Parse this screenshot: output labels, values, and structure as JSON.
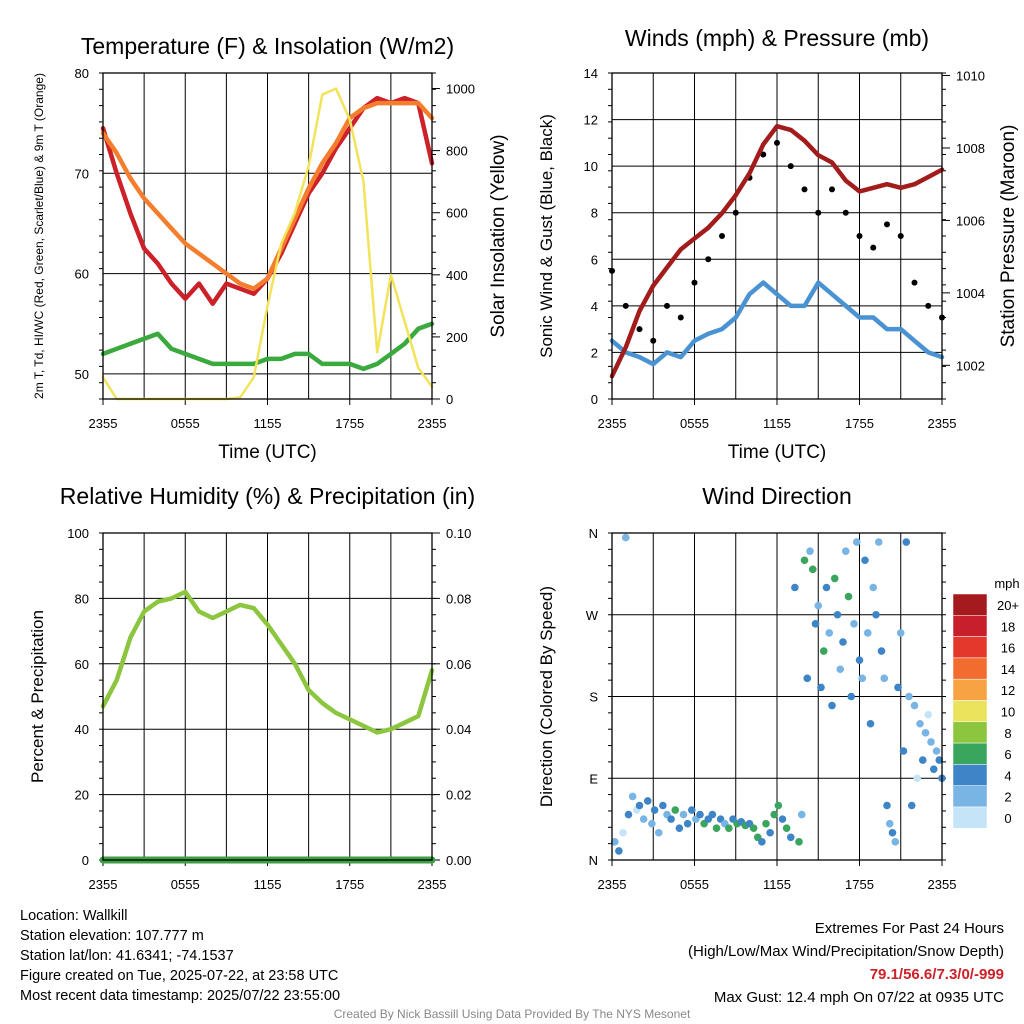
{
  "colors": {
    "temp_red": "#cc2128",
    "temp_orange": "#f47e2e",
    "green": "#3aa93e",
    "yellow": "#f2e35a",
    "wind_blue": "#4a93d3",
    "gust_black": "#000000",
    "pressure_maroon": "#a31c1c",
    "rh_green": "#8cc63e",
    "precip_green": "#3e9e45",
    "extremes_red": "#cc2128"
  },
  "chart_data": [
    {
      "type": "line",
      "title": "Temperature (F) & Insolation (W/m2)",
      "xlabel": "Time (UTC)",
      "ylabel": "2m T, Td, HI/WC (Red, Green, Scarlet/Blue) & 9m T (Orange)",
      "ylabel2": "Solar Insolation (Yellow)",
      "x_ticks": [
        "2355",
        "0555",
        "1155",
        "1755",
        "2355"
      ],
      "ylim": [
        47.5,
        80
      ],
      "y_ticks": [
        50,
        60,
        70,
        80
      ],
      "y2lim": [
        0,
        1050
      ],
      "y2_ticks": [
        0,
        200,
        400,
        600,
        800,
        1000
      ],
      "x_hours": [
        0,
        1,
        2,
        3,
        4,
        5,
        6,
        7,
        8,
        9,
        10,
        11,
        12,
        13,
        14,
        15,
        16,
        17,
        18,
        19,
        20,
        21,
        22,
        23,
        24
      ],
      "series": [
        {
          "color": "temp_red",
          "axis": "left",
          "values": [
            74.5,
            70,
            66,
            62.5,
            61,
            59,
            57.5,
            59,
            57,
            59,
            58.5,
            58,
            59.5,
            62,
            65,
            68,
            70,
            72.5,
            74.5,
            76.5,
            77.5,
            77,
            77.5,
            77,
            71
          ]
        },
        {
          "color": "temp_orange",
          "axis": "left",
          "values": [
            74,
            72,
            69.5,
            67.5,
            66,
            64.5,
            63,
            62,
            61,
            60,
            59,
            58.5,
            59.5,
            62.5,
            65.5,
            68.5,
            71,
            73,
            75.5,
            76.5,
            77,
            77,
            77,
            77,
            75.5
          ]
        },
        {
          "color": "green",
          "axis": "left",
          "values": [
            52,
            52.5,
            53,
            53.5,
            54,
            52.5,
            52,
            51.5,
            51,
            51,
            51,
            51,
            51.5,
            51.5,
            52,
            52,
            51,
            51,
            51,
            50.5,
            51,
            52,
            53,
            54.5,
            55
          ]
        },
        {
          "color": "yellow",
          "axis": "right",
          "values": [
            70,
            0,
            0,
            0,
            0,
            0,
            0,
            0,
            0,
            0,
            5,
            70,
            300,
            500,
            600,
            750,
            980,
            1000,
            900,
            700,
            150,
            400,
            250,
            100,
            40
          ]
        }
      ]
    },
    {
      "type": "line",
      "title": "Winds (mph) & Pressure (mb)",
      "xlabel": "Time (UTC)",
      "ylabel": "Sonic Wind & Gust (Blue, Black)",
      "ylabel2": "Station Pressure (Maroon)",
      "x_ticks": [
        "2355",
        "0555",
        "1155",
        "1755",
        "2355"
      ],
      "ylim": [
        0,
        14
      ],
      "y_ticks": [
        0,
        2,
        4,
        6,
        8,
        10,
        12,
        14
      ],
      "y2lim": [
        1001.07,
        1010.07
      ],
      "y2_ticks": [
        1002,
        1004,
        1006,
        1008,
        1010
      ],
      "x_hours": [
        0,
        1,
        2,
        3,
        4,
        5,
        6,
        7,
        8,
        9,
        10,
        11,
        12,
        13,
        14,
        15,
        16,
        17,
        18,
        19,
        20,
        21,
        22,
        23,
        24
      ],
      "series": [
        {
          "color": "wind_blue",
          "axis": "left",
          "values": [
            2.5,
            2,
            1.8,
            1.5,
            2,
            1.8,
            2.5,
            2.8,
            3,
            3.5,
            4.5,
            5,
            4.5,
            4,
            4,
            5,
            4.5,
            4,
            3.5,
            3.5,
            3,
            3,
            2.5,
            2,
            1.8
          ]
        },
        {
          "color": "gust_black",
          "axis": "left",
          "style": "dots",
          "values": [
            5.5,
            4,
            3,
            2.5,
            4,
            3.5,
            5,
            6,
            7,
            8,
            9.5,
            10.5,
            11,
            10,
            9,
            8,
            9,
            8,
            7,
            6.5,
            7.5,
            7,
            5,
            4,
            3.5
          ]
        },
        {
          "color": "pressure_maroon",
          "axis": "right",
          "values": [
            1001.7,
            1002.5,
            1003.5,
            1004.2,
            1004.7,
            1005.2,
            1005.5,
            1005.8,
            1006.2,
            1006.7,
            1007.3,
            1008.1,
            1008.6,
            1008.5,
            1008.2,
            1007.8,
            1007.6,
            1007.1,
            1006.8,
            1006.9,
            1007.0,
            1006.9,
            1007.0,
            1007.2,
            1007.4
          ]
        }
      ]
    },
    {
      "type": "line",
      "title": "Relative Humidity (%) & Precipitation (in)",
      "xlabel": "",
      "ylabel": "Percent & Precipitation",
      "x_ticks": [
        "2355",
        "0555",
        "1155",
        "1755",
        "2355"
      ],
      "ylim": [
        0,
        100
      ],
      "y_ticks": [
        0,
        20,
        40,
        60,
        80,
        100
      ],
      "y2lim": [
        0,
        0.1
      ],
      "y2_ticks": [
        "0.00",
        "0.02",
        "0.04",
        "0.06",
        "0.08",
        "0.10"
      ],
      "x_hours": [
        0,
        1,
        2,
        3,
        4,
        5,
        6,
        7,
        8,
        9,
        10,
        11,
        12,
        13,
        14,
        15,
        16,
        17,
        18,
        19,
        20,
        21,
        22,
        23,
        24
      ],
      "series": [
        {
          "color": "rh_green",
          "axis": "left",
          "values": [
            47,
            55,
            68,
            76,
            79,
            80,
            82,
            76,
            74,
            76,
            78,
            77,
            72,
            66,
            60,
            52,
            48,
            45,
            43,
            41,
            39,
            40,
            42,
            44,
            58
          ]
        },
        {
          "color": "precip_green",
          "axis": "right",
          "values": [
            0,
            0,
            0,
            0,
            0,
            0,
            0,
            0,
            0,
            0,
            0,
            0,
            0,
            0,
            0,
            0,
            0,
            0,
            0,
            0,
            0,
            0,
            0,
            0,
            0
          ]
        }
      ]
    },
    {
      "type": "scatter",
      "title": "Wind Direction",
      "xlabel": "",
      "ylabel": "Direction (Colored By Speed)",
      "x_ticks": [
        "2355",
        "0555",
        "1155",
        "1755",
        "2355"
      ],
      "y_tick_labels": [
        "N",
        "E",
        "S",
        "W",
        "N"
      ],
      "ylim": [
        0,
        360
      ],
      "legend_title": "mph",
      "legend_labels": [
        "20+",
        "18",
        "16",
        "14",
        "12",
        "10",
        "8",
        "6",
        "4",
        "2",
        "0"
      ],
      "legend_colors": [
        "#a51a1e",
        "#c8202a",
        "#e5382c",
        "#f26c2f",
        "#f8a343",
        "#ebe35c",
        "#8cc63e",
        "#3aa55c",
        "#3d85c6",
        "#78b4e4",
        "#c6e4f7"
      ],
      "points": [
        [
          0.2,
          20
        ],
        [
          0.5,
          10
        ],
        [
          0.8,
          30
        ],
        [
          1.0,
          355
        ],
        [
          1.2,
          50
        ],
        [
          1.5,
          70
        ],
        [
          1.8,
          55
        ],
        [
          2.0,
          60
        ],
        [
          2.3,
          45
        ],
        [
          2.6,
          65
        ],
        [
          2.9,
          40
        ],
        [
          3.1,
          55
        ],
        [
          3.4,
          30
        ],
        [
          3.7,
          60
        ],
        [
          4.0,
          50
        ],
        [
          4.3,
          45
        ],
        [
          4.6,
          55
        ],
        [
          4.9,
          35
        ],
        [
          5.2,
          50
        ],
        [
          5.5,
          40
        ],
        [
          5.8,
          55
        ],
        [
          6.1,
          45
        ],
        [
          6.4,
          50
        ],
        [
          6.7,
          40
        ],
        [
          7.0,
          45
        ],
        [
          7.3,
          50
        ],
        [
          7.6,
          35
        ],
        [
          7.9,
          45
        ],
        [
          8.2,
          40
        ],
        [
          8.5,
          35
        ],
        [
          8.8,
          45
        ],
        [
          9.1,
          40
        ],
        [
          9.4,
          42
        ],
        [
          9.7,
          38
        ],
        [
          10.0,
          40
        ],
        [
          10.3,
          35
        ],
        [
          10.6,
          25
        ],
        [
          10.9,
          20
        ],
        [
          11.2,
          40
        ],
        [
          11.5,
          30
        ],
        [
          11.8,
          50
        ],
        [
          12.1,
          60
        ],
        [
          12.4,
          45
        ],
        [
          12.7,
          35
        ],
        [
          13.0,
          25
        ],
        [
          13.3,
          300
        ],
        [
          13.6,
          20
        ],
        [
          13.8,
          50
        ],
        [
          14.0,
          330
        ],
        [
          14.2,
          200
        ],
        [
          14.4,
          340
        ],
        [
          14.6,
          320
        ],
        [
          14.8,
          260
        ],
        [
          15.0,
          280
        ],
        [
          15.2,
          190
        ],
        [
          15.4,
          230
        ],
        [
          15.6,
          300
        ],
        [
          15.8,
          250
        ],
        [
          16.0,
          170
        ],
        [
          16.2,
          310
        ],
        [
          16.4,
          270
        ],
        [
          16.6,
          210
        ],
        [
          16.8,
          240
        ],
        [
          17.0,
          340
        ],
        [
          17.2,
          290
        ],
        [
          17.4,
          180
        ],
        [
          17.6,
          260
        ],
        [
          17.8,
          350
        ],
        [
          18.0,
          220
        ],
        [
          18.2,
          200
        ],
        [
          18.4,
          330
        ],
        [
          18.6,
          250
        ],
        [
          18.8,
          150
        ],
        [
          19.0,
          300
        ],
        [
          19.2,
          270
        ],
        [
          19.4,
          350
        ],
        [
          19.6,
          230
        ],
        [
          19.8,
          200
        ],
        [
          20.0,
          60
        ],
        [
          20.2,
          40
        ],
        [
          20.4,
          30
        ],
        [
          20.6,
          20
        ],
        [
          20.8,
          190
        ],
        [
          21.0,
          250
        ],
        [
          21.2,
          120
        ],
        [
          21.4,
          350
        ],
        [
          21.6,
          180
        ],
        [
          21.8,
          60
        ],
        [
          22.0,
          170
        ],
        [
          22.2,
          90
        ],
        [
          22.4,
          150
        ],
        [
          22.6,
          110
        ],
        [
          22.8,
          140
        ],
        [
          23.0,
          160
        ],
        [
          23.2,
          130
        ],
        [
          23.4,
          100
        ],
        [
          23.6,
          120
        ],
        [
          23.8,
          110
        ],
        [
          24.0,
          90
        ]
      ],
      "point_colors": [
        "#78b4e4",
        "#3d85c6",
        "#c6e4f7",
        "#78b4e4",
        "#3d85c6",
        "#78b4e4",
        "#c6e4f7",
        "#3d85c6",
        "#78b4e4",
        "#3d85c6",
        "#78b4e4",
        "#3d85c6",
        "#78b4e4",
        "#3d85c6",
        "#78b4e4",
        "#3d85c6",
        "#3aa55c",
        "#3d85c6",
        "#78b4e4",
        "#3d85c6",
        "#3d85c6",
        "#78b4e4",
        "#3d85c6",
        "#3aa55c",
        "#3d85c6",
        "#3d85c6",
        "#3aa55c",
        "#3d85c6",
        "#78b4e4",
        "#3aa55c",
        "#3d85c6",
        "#3aa55c",
        "#3d85c6",
        "#3aa55c",
        "#3d85c6",
        "#3aa55c",
        "#3aa55c",
        "#3d85c6",
        "#3aa55c",
        "#3d85c6",
        "#3aa55c",
        "#3aa55c",
        "#3d85c6",
        "#3aa55c",
        "#3d85c6",
        "#3d85c6",
        "#3aa55c",
        "#78b4e4",
        "#3aa55c",
        "#3d85c6",
        "#78b4e4",
        "#3aa55c",
        "#3d85c6",
        "#78b4e4",
        "#3d85c6",
        "#3aa55c",
        "#3d85c6",
        "#78b4e4",
        "#3d85c6",
        "#3aa55c",
        "#3d85c6",
        "#78b4e4",
        "#3d85c6",
        "#78b4e4",
        "#3aa55c",
        "#3d85c6",
        "#78b4e4",
        "#78b4e4",
        "#3d85c6",
        "#78b4e4",
        "#3d85c6",
        "#78b4e4",
        "#3d85c6",
        "#78b4e4",
        "#3d85c6",
        "#78b4e4",
        "#3d85c6",
        "#78b4e4",
        "#3d85c6",
        "#78b4e4",
        "#3d85c6",
        "#78b4e4",
        "#3d85c6",
        "#78b4e4",
        "#3d85c6",
        "#3d85c6",
        "#78b4e4",
        "#3d85c6",
        "#78b4e4",
        "#c6e4f7",
        "#78b4e4",
        "#3d85c6",
        "#78b4e4",
        "#c6e4f7",
        "#78b4e4",
        "#3d85c6",
        "#78b4e4",
        "#3d85c6",
        "#3d85c6"
      ]
    }
  ],
  "footer": {
    "location": "Location: Wallkill",
    "elevation": "Station elevation: 107.777 m",
    "latlon": "Station lat/lon: 41.6341; -74.1537",
    "created": "Figure created on Tue, 2025-07-22, at 23:58 UTC",
    "recent": "Most recent data timestamp: 2025/07/22 23:55:00",
    "extremes_title": "Extremes For Past 24 Hours",
    "extremes_sub": "(High/Low/Max Wind/Precipitation/Snow Depth)",
    "extremes_values": "79.1/56.6/7.3/0/-999",
    "max_gust": "Max Gust: 12.4 mph On 07/22 at 0935 UTC",
    "credit": "Created By Nick Bassill Using Data Provided By The NYS Mesonet"
  }
}
